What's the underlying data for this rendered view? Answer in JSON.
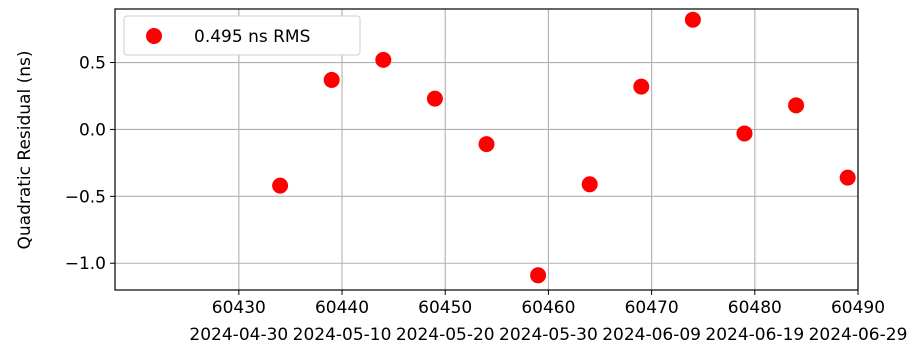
{
  "chart_data": {
    "type": "scatter",
    "title": "",
    "xlabel": "",
    "ylabel": "Quadratic Residual (ns)",
    "xlim": [
      60418,
      60490
    ],
    "ylim": [
      -1.2,
      0.9
    ],
    "grid": true,
    "legend_position": "top-left",
    "x_ticks": [
      60430,
      60440,
      60450,
      60460,
      60470,
      60480,
      60490
    ],
    "x_date_labels": [
      "2024-04-30",
      "2024-05-10",
      "2024-05-20",
      "2024-05-30",
      "2024-06-09",
      "2024-06-19",
      "2024-06-29"
    ],
    "y_ticks": [
      0.5,
      0.0,
      -0.5,
      -1.0
    ],
    "y_tick_labels": [
      "0.5",
      "0.0",
      "−0.5",
      "−1.0"
    ],
    "series": [
      {
        "name": "0.495 ns RMS",
        "color": "#ff0000",
        "marker": "circle",
        "x": [
          60434,
          60439,
          60444,
          60449,
          60454,
          60459,
          60464,
          60469,
          60474,
          60479,
          60484,
          60489
        ],
        "y": [
          -0.42,
          0.37,
          0.52,
          0.23,
          -0.11,
          -1.09,
          -0.41,
          0.32,
          0.82,
          -0.03,
          0.18,
          -0.36
        ]
      }
    ]
  }
}
